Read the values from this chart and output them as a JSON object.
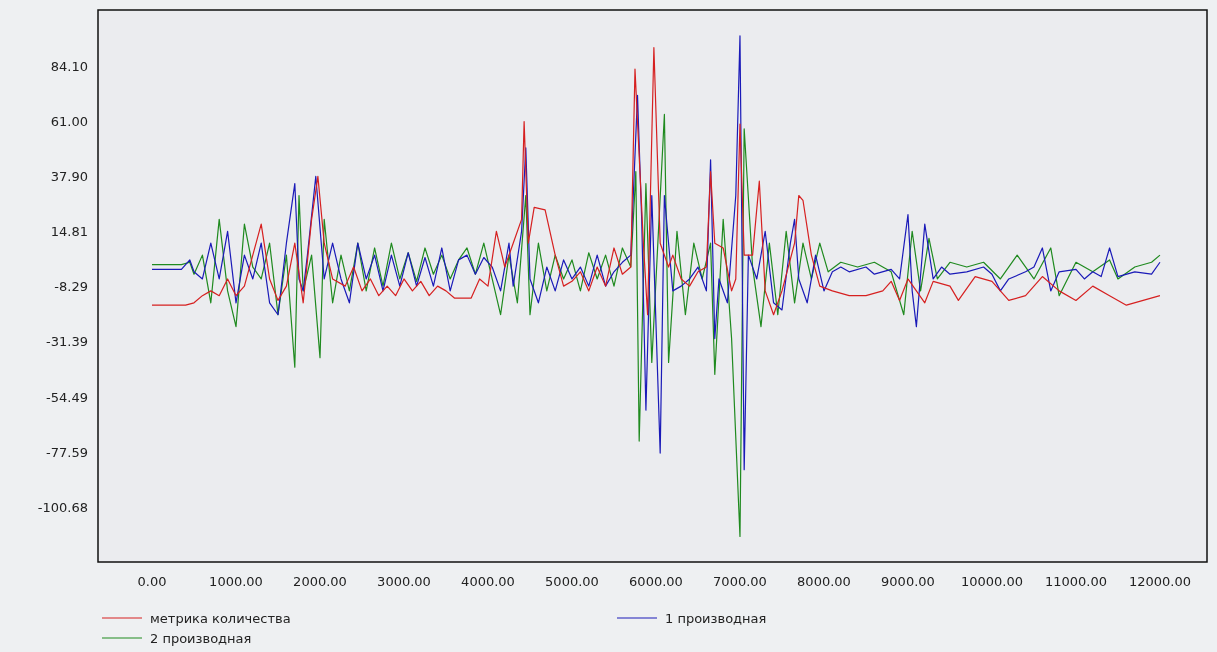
{
  "chart_data": {
    "type": "line",
    "xlim": [
      -643,
      12560
    ],
    "ylim": [
      -123.7,
      107.8
    ],
    "xticks": [
      {
        "value": 0,
        "label": "0.00"
      },
      {
        "value": 1000,
        "label": "1000.00"
      },
      {
        "value": 2000,
        "label": "2000.00"
      },
      {
        "value": 3000,
        "label": "3000.00"
      },
      {
        "value": 4000,
        "label": "4000.00"
      },
      {
        "value": 5000,
        "label": "5000.00"
      },
      {
        "value": 6000,
        "label": "6000.00"
      },
      {
        "value": 7000,
        "label": "7000.00"
      },
      {
        "value": 8000,
        "label": "8000.00"
      },
      {
        "value": 9000,
        "label": "9000.00"
      },
      {
        "value": 10000,
        "label": "10000.00"
      },
      {
        "value": 11000,
        "label": "11000.00"
      },
      {
        "value": 12000,
        "label": "12000.00"
      }
    ],
    "yticks": [
      {
        "value": 84.1,
        "label": "84.10"
      },
      {
        "value": 61,
        "label": "61.00"
      },
      {
        "value": 37.9,
        "label": "37.90"
      },
      {
        "value": 14.81,
        "label": "14.81"
      },
      {
        "value": -8.29,
        "label": "-8.29"
      },
      {
        "value": -31.39,
        "label": "-31.39"
      },
      {
        "value": -54.49,
        "label": "-54.49"
      },
      {
        "value": -77.59,
        "label": "-77.59"
      },
      {
        "value": -100.68,
        "label": "-100.68"
      }
    ],
    "grid": false,
    "legend": "bottom",
    "line_style": "solid",
    "series": [
      {
        "name": "метрика количества",
        "color": "#d62020",
        "x": [
          0,
          400,
          500,
          600,
          700,
          800,
          900,
          1000,
          1100,
          1200,
          1300,
          1400,
          1500,
          1600,
          1700,
          1800,
          1900,
          1975,
          2050,
          2150,
          2300,
          2400,
          2500,
          2600,
          2700,
          2800,
          2900,
          3000,
          3100,
          3200,
          3300,
          3400,
          3500,
          3600,
          3800,
          3900,
          4000,
          4100,
          4200,
          4300,
          4400,
          4430,
          4480,
          4550,
          4680,
          4800,
          4900,
          5000,
          5100,
          5200,
          5300,
          5400,
          5500,
          5600,
          5700,
          5750,
          5850,
          5900,
          5975,
          6050,
          6150,
          6200,
          6300,
          6400,
          6500,
          6600,
          6650,
          6700,
          6800,
          6900,
          6950,
          7000,
          7050,
          7150,
          7230,
          7300,
          7400,
          7500,
          7650,
          7700,
          7750,
          7850,
          7950,
          8100,
          8300,
          8500,
          8700,
          8800,
          8900,
          9000,
          9100,
          9200,
          9300,
          9500,
          9600,
          9800,
          10000,
          10200,
          10400,
          10600,
          10800,
          11000,
          11200,
          11400,
          11600,
          11800,
          12000
        ],
        "values": [
          -16,
          -16,
          -15,
          -12,
          -10,
          -12,
          -5,
          -12,
          -8,
          5,
          18,
          -5,
          -14,
          -8,
          10,
          -15,
          20,
          38,
          10,
          -5,
          -8,
          0,
          -10,
          -5,
          -12,
          -8,
          -12,
          -5,
          -10,
          -6,
          -12,
          -8,
          -10,
          -13,
          -13,
          -5,
          -8,
          15,
          0,
          10,
          20,
          61,
          10,
          25,
          24,
          5,
          -8,
          -6,
          -2,
          -10,
          0,
          -8,
          8,
          -3,
          0,
          83,
          10,
          -20,
          92,
          10,
          0,
          5,
          -5,
          -8,
          -2,
          0,
          40,
          10,
          8,
          -10,
          -5,
          60,
          5,
          5,
          36,
          -10,
          -20,
          -10,
          10,
          30,
          28,
          5,
          -8,
          -10,
          -12,
          -12,
          -10,
          -6,
          -14,
          -5,
          -10,
          -15,
          -6,
          -8,
          -14,
          -4,
          -6,
          -14,
          -12,
          -4,
          -10,
          -14,
          -8,
          -12,
          -16,
          -14,
          -12
        ]
      },
      {
        "name": "1 производная",
        "color": "#1a1ab8",
        "x": [
          0,
          350,
          450,
          500,
          600,
          700,
          800,
          900,
          1000,
          1100,
          1200,
          1300,
          1400,
          1500,
          1600,
          1700,
          1750,
          1800,
          1850,
          1950,
          2050,
          2150,
          2250,
          2350,
          2450,
          2550,
          2650,
          2750,
          2850,
          2950,
          3050,
          3150,
          3250,
          3350,
          3450,
          3550,
          3650,
          3750,
          3850,
          3950,
          4050,
          4150,
          4250,
          4300,
          4400,
          4450,
          4500,
          4600,
          4700,
          4800,
          4900,
          5000,
          5100,
          5200,
          5300,
          5400,
          5500,
          5600,
          5700,
          5780,
          5830,
          5880,
          5950,
          6050,
          6100,
          6200,
          6300,
          6400,
          6500,
          6600,
          6650,
          6700,
          6750,
          6850,
          6950,
          7000,
          7050,
          7100,
          7200,
          7300,
          7400,
          7500,
          7600,
          7650,
          7700,
          7800,
          7900,
          8000,
          8100,
          8200,
          8300,
          8500,
          8600,
          8800,
          8900,
          9000,
          9050,
          9100,
          9200,
          9300,
          9400,
          9500,
          9700,
          9900,
          10000,
          10100,
          10200,
          10400,
          10500,
          10600,
          10700,
          10800,
          11000,
          11100,
          11200,
          11300,
          11400,
          11500,
          11700,
          11900,
          12000
        ],
        "values": [
          -1,
          -1,
          3,
          -2,
          -5,
          10,
          -5,
          15,
          -15,
          5,
          -5,
          10,
          -15,
          -20,
          10,
          35,
          -5,
          -10,
          5,
          38,
          -5,
          10,
          -5,
          -15,
          10,
          -5,
          5,
          -10,
          5,
          -8,
          6,
          -8,
          4,
          -8,
          8,
          -10,
          3,
          5,
          -3,
          4,
          0,
          -10,
          10,
          -8,
          15,
          50,
          -5,
          -15,
          0,
          -10,
          3,
          -5,
          0,
          -8,
          5,
          -8,
          -2,
          2,
          5,
          72,
          20,
          -60,
          30,
          -78,
          30,
          -10,
          -8,
          -5,
          0,
          -10,
          45,
          -30,
          -5,
          -15,
          30,
          97,
          -85,
          5,
          -5,
          15,
          -15,
          -18,
          10,
          20,
          -5,
          -15,
          5,
          -10,
          -2,
          0,
          -2,
          0,
          -3,
          -1,
          -5,
          22,
          -10,
          -25,
          18,
          -5,
          0,
          -3,
          -2,
          0,
          -3,
          -10,
          -5,
          -2,
          0,
          8,
          -10,
          -2,
          -1,
          -5,
          -2,
          -4,
          8,
          -4,
          -2,
          -3,
          2
        ]
      },
      {
        "name": "2 производная",
        "color": "#1f8a1f",
        "x": [
          0,
          350,
          450,
          500,
          600,
          700,
          800,
          900,
          1000,
          1100,
          1200,
          1300,
          1400,
          1500,
          1600,
          1700,
          1750,
          1800,
          1900,
          2000,
          2050,
          2150,
          2250,
          2350,
          2450,
          2550,
          2650,
          2750,
          2850,
          2950,
          3050,
          3150,
          3250,
          3350,
          3450,
          3550,
          3650,
          3750,
          3850,
          3950,
          4050,
          4150,
          4250,
          4350,
          4450,
          4500,
          4600,
          4700,
          4800,
          4900,
          5000,
          5100,
          5200,
          5300,
          5400,
          5500,
          5600,
          5700,
          5760,
          5800,
          5880,
          5950,
          6100,
          6150,
          6250,
          6350,
          6450,
          6550,
          6650,
          6700,
          6800,
          6900,
          7000,
          7050,
          7150,
          7250,
          7350,
          7450,
          7550,
          7650,
          7750,
          7850,
          7950,
          8050,
          8200,
          8400,
          8600,
          8800,
          8950,
          9050,
          9150,
          9250,
          9350,
          9500,
          9700,
          9900,
          10100,
          10300,
          10500,
          10700,
          10800,
          11000,
          11200,
          11400,
          11500,
          11700,
          11900,
          12000
        ],
        "values": [
          1,
          1,
          2,
          -3,
          5,
          -15,
          20,
          -10,
          -25,
          18,
          0,
          -5,
          10,
          -20,
          5,
          -42,
          30,
          -10,
          5,
          -38,
          20,
          -15,
          5,
          -10,
          10,
          -10,
          8,
          -8,
          10,
          -5,
          6,
          -6,
          8,
          -3,
          5,
          -5,
          3,
          8,
          -3,
          10,
          -5,
          -20,
          5,
          -15,
          30,
          -20,
          10,
          -10,
          5,
          -5,
          3,
          -10,
          6,
          -5,
          5,
          -8,
          8,
          0,
          40,
          -73,
          35,
          -40,
          64,
          -40,
          15,
          -20,
          10,
          -5,
          10,
          -45,
          20,
          -30,
          -113,
          58,
          0,
          -25,
          10,
          -20,
          15,
          -15,
          10,
          -5,
          10,
          -2,
          2,
          0,
          2,
          -2,
          -20,
          15,
          -10,
          12,
          -5,
          2,
          0,
          2,
          -5,
          5,
          -5,
          8,
          -12,
          2,
          -2,
          3,
          -5,
          0,
          2,
          5
        ]
      }
    ]
  }
}
